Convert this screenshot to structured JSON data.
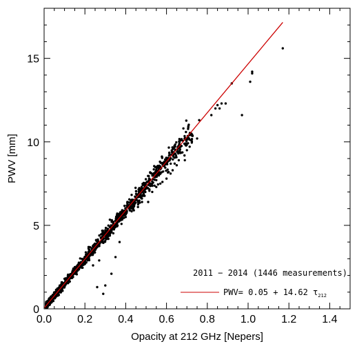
{
  "chart_data": {
    "type": "scatter",
    "xlabel": "Opacity at 212 GHz [Nepers]",
    "ylabel": "PWV [mm]",
    "xlim": [
      0.0,
      1.5
    ],
    "ylim": [
      0.0,
      18.0
    ],
    "x_ticks": [
      "0.0",
      "0.2",
      "0.4",
      "0.6",
      "0.8",
      "1.0",
      "1.2",
      "1.4"
    ],
    "y_ticks": [
      "0",
      "5",
      "10",
      "15"
    ],
    "grid": false,
    "legend_position": "bottom-right",
    "legend": {
      "caption": "2011 − 2014 (1446 measurements)",
      "fit_label": "PWV= 0.05 + 14.62 τ",
      "fit_label_subscript": "212"
    },
    "series": [
      {
        "kind": "points",
        "color": "#000000",
        "count": 1446,
        "x": [
          0.92,
          1.01,
          1.02,
          1.02,
          0.97,
          0.89,
          0.87,
          0.86,
          0.85,
          0.84,
          0.82,
          0.76,
          0.75,
          0.72,
          0.7,
          0.69,
          0.66,
          0.65,
          0.64,
          0.63,
          0.62,
          0.61,
          0.6,
          0.58,
          0.57,
          0.55,
          0.53,
          0.51,
          0.48,
          0.46,
          0.44,
          0.42,
          0.4,
          0.38,
          0.36,
          0.34,
          0.33,
          0.31,
          0.29,
          0.27,
          0.26,
          0.24,
          0.22,
          0.2,
          0.18,
          0.16,
          0.14,
          0.12,
          0.1,
          0.08,
          0.06,
          0.04,
          0.03,
          0.02,
          1.17,
          0.3,
          0.33,
          0.35,
          0.29,
          0.26,
          0.24,
          0.37,
          0.27
        ],
        "y": [
          13.5,
          13.6,
          14.2,
          14.1,
          11.6,
          12.3,
          12.3,
          12.0,
          12.2,
          12.0,
          11.6,
          11.3,
          10.2,
          10.1,
          9.5,
          8.9,
          8.9,
          8.6,
          8.7,
          8.3,
          8.1,
          8.2,
          7.8,
          7.6,
          7.5,
          7.3,
          7.0,
          6.4,
          6.4,
          6.1,
          5.9,
          5.9,
          5.5,
          5.4,
          5.0,
          4.9,
          4.6,
          4.3,
          4.2,
          3.9,
          3.7,
          3.3,
          3.1,
          2.9,
          2.6,
          2.3,
          1.9,
          1.6,
          1.5,
          1.1,
          0.9,
          0.7,
          0.5,
          0.3,
          15.6,
          1.4,
          2.1,
          3.1,
          0.9,
          1.3,
          2.6,
          4.0,
          2.9
        ]
      },
      {
        "kind": "fit_line",
        "color": "#cc0000",
        "intercept": 0.05,
        "slope": 14.62,
        "x_range": [
          0.0,
          1.17
        ]
      }
    ]
  }
}
